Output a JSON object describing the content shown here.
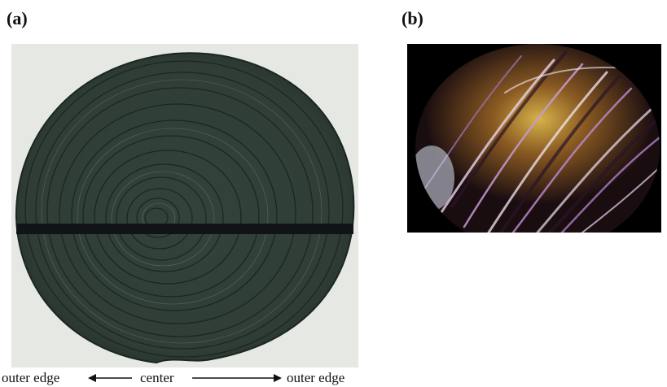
{
  "panels": {
    "a": {
      "label": "(a)"
    },
    "b": {
      "label": "(b)"
    }
  },
  "caption": {
    "left": "outer edge",
    "center": "center",
    "right": "outer edge"
  },
  "icons": {
    "left_arrow": "arrow-left-icon",
    "right_arrow": "arrow-right-icon"
  },
  "colors": {
    "disk": "#2f3d36",
    "disk_dark": "#1c2621",
    "band": "#111417",
    "background_a": "#e6e8e4",
    "background_b": "#000000"
  }
}
